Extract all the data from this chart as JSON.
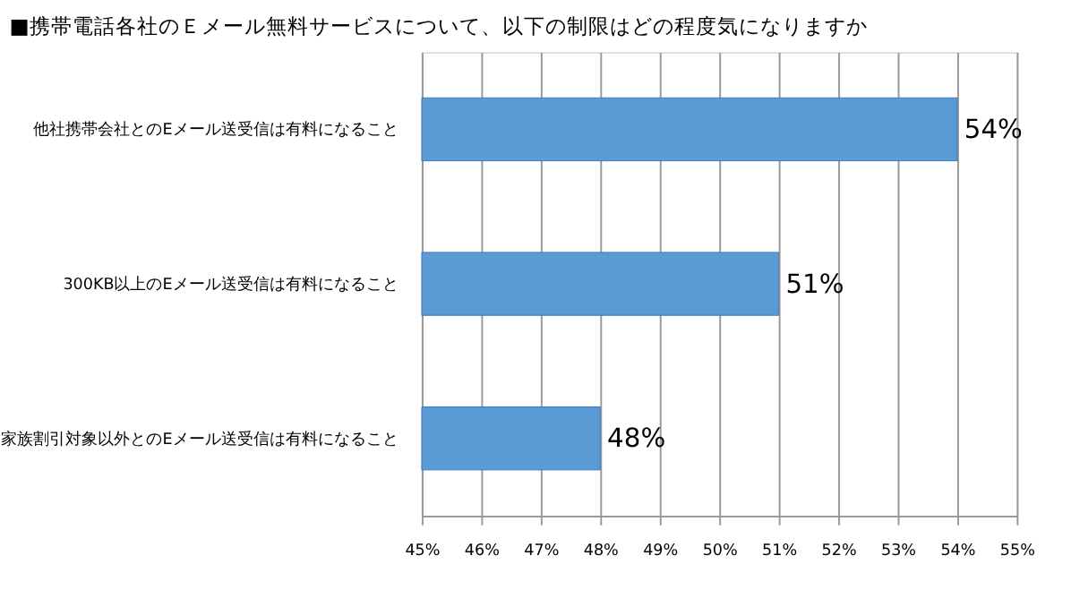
{
  "chart_data": {
    "type": "bar",
    "orientation": "horizontal",
    "title": "■携帯電話各社のＥメール無料サービスについて、以下の制限はどの程度気になりますか",
    "categories": [
      "他社携帯会社とのEメール送受信は有料になること",
      "300KB以上のEメール送受信は有料になること",
      "家族割引対象以外とのEメール送受信は有料になること"
    ],
    "values": [
      54,
      51,
      48
    ],
    "value_labels": [
      "54%",
      "51%",
      "48%"
    ],
    "color": "#5b9bd5",
    "xlim": [
      45,
      55
    ],
    "xticks": [
      {
        "value": 45,
        "label": "45%"
      },
      {
        "value": 46,
        "label": "46%"
      },
      {
        "value": 47,
        "label": "47%"
      },
      {
        "value": 48,
        "label": "48%"
      },
      {
        "value": 49,
        "label": "49%"
      },
      {
        "value": 50,
        "label": "50%"
      },
      {
        "value": 51,
        "label": "51%"
      },
      {
        "value": 52,
        "label": "52%"
      },
      {
        "value": 53,
        "label": "53%"
      },
      {
        "value": 54,
        "label": "54%"
      },
      {
        "value": 55,
        "label": "55%"
      }
    ],
    "grid": "x"
  }
}
